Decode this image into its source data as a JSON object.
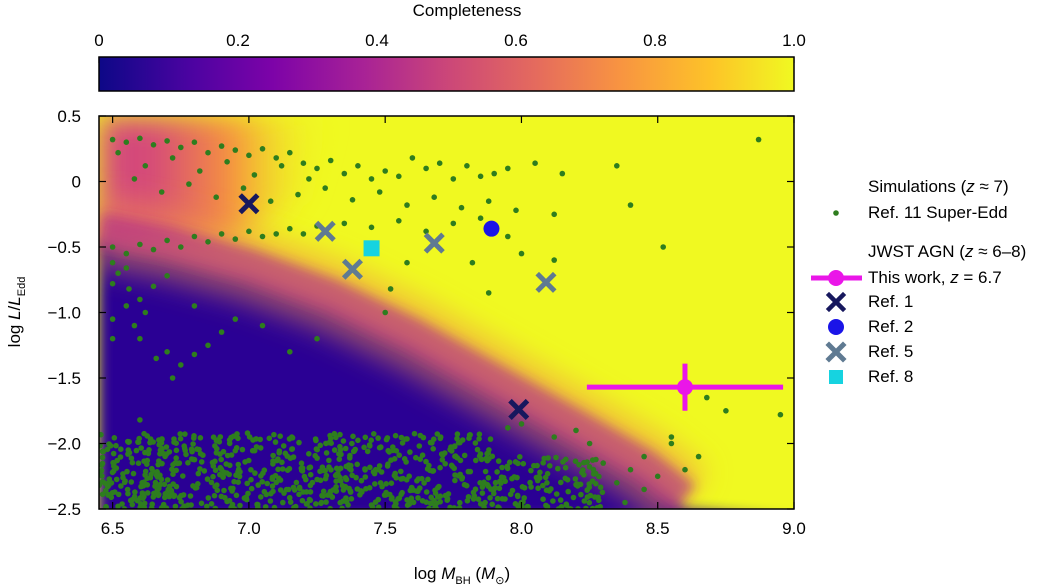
{
  "colorbar": {
    "title": "Completeness",
    "ticks": [
      "0",
      "0.2",
      "0.4",
      "0.6",
      "0.8",
      "1.0"
    ],
    "range": [
      0,
      1
    ],
    "colormap": "plasma"
  },
  "chart_data": {
    "type": "scatter",
    "xlabel_main": "log ",
    "xlabel_var": "M",
    "xlabel_sub": "BH",
    "xlabel_unit_open": " (",
    "xlabel_unit_var": "M",
    "xlabel_unit_sub": "⊙",
    "xlabel_unit_close": ")",
    "ylabel_main": "log ",
    "ylabel_var": "L",
    "ylabel_slash": "/",
    "ylabel_var2": "L",
    "ylabel_sub": "Edd",
    "xlim": [
      6.45,
      9.0
    ],
    "ylim": [
      -2.5,
      0.5
    ],
    "x_ticks": [
      {
        "value": 6.5,
        "label": "6.5"
      },
      {
        "value": 7.0,
        "label": "7.0"
      },
      {
        "value": 7.5,
        "label": "7.5"
      },
      {
        "value": 8.0,
        "label": "8.0"
      },
      {
        "value": 8.5,
        "label": "8.5"
      },
      {
        "value": 9.0,
        "label": "9.0"
      }
    ],
    "y_ticks": [
      {
        "value": 0.5,
        "label": "0.5"
      },
      {
        "value": 0.0,
        "label": "0"
      },
      {
        "value": -0.5,
        "label": "−0.5"
      },
      {
        "value": -1.0,
        "label": "−1.0"
      },
      {
        "value": -1.5,
        "label": "−1.5"
      },
      {
        "value": -2.0,
        "label": "−2.0"
      },
      {
        "value": -2.5,
        "label": "−2.5"
      }
    ],
    "legend": {
      "position": "right",
      "group1_title_pre": "Simulations (",
      "group1_title_var": "z",
      "group1_title_post": " ≈ 7)",
      "group2_title_pre": "JWST AGN (",
      "group2_title_var": "z",
      "group2_title_post": " ≈ 6–8)"
    },
    "series": [
      {
        "name": "Ref. 11 Super-Edd",
        "marker": "dot",
        "color": "#2e7d1e",
        "points": [
          [
            6.5,
            0.32
          ],
          [
            6.55,
            0.3
          ],
          [
            6.6,
            0.33
          ],
          [
            6.65,
            0.28
          ],
          [
            6.7,
            0.31
          ],
          [
            6.75,
            0.26
          ],
          [
            6.8,
            0.3
          ],
          [
            6.85,
            0.22
          ],
          [
            6.9,
            0.27
          ],
          [
            6.95,
            0.24
          ],
          [
            7.0,
            0.2
          ],
          [
            7.05,
            0.25
          ],
          [
            7.1,
            0.18
          ],
          [
            7.15,
            0.22
          ],
          [
            7.2,
            0.14
          ],
          [
            7.25,
            0.1
          ],
          [
            7.3,
            0.16
          ],
          [
            7.35,
            0.06
          ],
          [
            7.4,
            0.12
          ],
          [
            7.45,
            0.02
          ],
          [
            7.5,
            0.08
          ],
          [
            7.55,
            0.04
          ],
          [
            7.6,
            0.18
          ],
          [
            7.65,
            0.1
          ],
          [
            7.7,
            0.14
          ],
          [
            7.75,
            0.02
          ],
          [
            7.8,
            0.12
          ],
          [
            7.85,
            0.04
          ],
          [
            7.9,
            0.06
          ],
          [
            7.95,
            0.1
          ],
          [
            8.05,
            0.14
          ],
          [
            8.15,
            0.06
          ],
          [
            8.35,
            0.12
          ],
          [
            8.87,
            0.32
          ],
          [
            6.52,
            0.22
          ],
          [
            6.62,
            0.12
          ],
          [
            6.72,
            0.18
          ],
          [
            6.82,
            0.08
          ],
          [
            6.92,
            0.15
          ],
          [
            7.02,
            0.05
          ],
          [
            7.12,
            0.12
          ],
          [
            7.22,
            0.02
          ],
          [
            6.58,
            0.02
          ],
          [
            6.68,
            -0.08
          ],
          [
            6.78,
            -0.02
          ],
          [
            6.88,
            -0.12
          ],
          [
            6.98,
            -0.05
          ],
          [
            7.08,
            -0.15
          ],
          [
            7.18,
            -0.1
          ],
          [
            7.28,
            -0.05
          ],
          [
            7.38,
            -0.14
          ],
          [
            7.48,
            -0.08
          ],
          [
            7.58,
            -0.18
          ],
          [
            7.68,
            -0.12
          ],
          [
            7.78,
            -0.2
          ],
          [
            7.88,
            -0.15
          ],
          [
            7.98,
            -0.22
          ],
          [
            8.12,
            -0.25
          ],
          [
            8.4,
            -0.18
          ],
          [
            6.5,
            -0.5
          ],
          [
            6.55,
            -0.55
          ],
          [
            6.6,
            -0.48
          ],
          [
            6.65,
            -0.52
          ],
          [
            6.7,
            -0.45
          ],
          [
            6.75,
            -0.5
          ],
          [
            6.8,
            -0.42
          ],
          [
            6.85,
            -0.46
          ],
          [
            6.9,
            -0.4
          ],
          [
            6.95,
            -0.44
          ],
          [
            7.0,
            -0.38
          ],
          [
            7.05,
            -0.42
          ],
          [
            7.1,
            -0.4
          ],
          [
            7.15,
            -0.36
          ],
          [
            7.2,
            -0.4
          ],
          [
            7.25,
            -0.34
          ],
          [
            7.35,
            -0.32
          ],
          [
            7.45,
            -0.35
          ],
          [
            7.55,
            -0.3
          ],
          [
            7.65,
            -0.38
          ],
          [
            7.75,
            -0.32
          ],
          [
            7.85,
            -0.28
          ],
          [
            7.95,
            -0.42
          ],
          [
            8.0,
            -0.55
          ],
          [
            7.58,
            -0.62
          ],
          [
            7.82,
            -0.62
          ],
          [
            7.88,
            -0.85
          ],
          [
            8.52,
            -0.5
          ],
          [
            7.52,
            -0.82
          ],
          [
            8.12,
            -0.6
          ],
          [
            6.5,
            -0.62
          ],
          [
            6.52,
            -0.7
          ],
          [
            6.55,
            -0.66
          ],
          [
            6.5,
            -0.78
          ],
          [
            6.56,
            -0.82
          ],
          [
            6.6,
            -0.9
          ],
          [
            6.55,
            -0.95
          ],
          [
            6.5,
            -1.05
          ],
          [
            6.58,
            -1.1
          ],
          [
            6.62,
            -1.0
          ],
          [
            6.5,
            -1.2
          ],
          [
            6.6,
            -1.2
          ],
          [
            6.66,
            -1.35
          ],
          [
            6.7,
            -1.3
          ],
          [
            6.72,
            -1.5
          ],
          [
            6.75,
            -1.4
          ],
          [
            6.8,
            -1.32
          ],
          [
            6.85,
            -1.25
          ],
          [
            6.9,
            -1.15
          ],
          [
            6.95,
            -1.05
          ],
          [
            6.65,
            -0.8
          ],
          [
            6.7,
            -0.72
          ],
          [
            6.8,
            -0.95
          ],
          [
            7.05,
            -1.1
          ],
          [
            7.15,
            -1.3
          ],
          [
            7.25,
            -1.2
          ],
          [
            7.5,
            -1.0
          ],
          [
            6.6,
            -1.82
          ],
          [
            8.2,
            -1.9
          ],
          [
            8.25,
            -2.0
          ],
          [
            8.3,
            -2.15
          ],
          [
            8.35,
            -2.3
          ],
          [
            8.4,
            -2.2
          ],
          [
            8.45,
            -2.1
          ],
          [
            8.5,
            -2.25
          ],
          [
            8.55,
            -2.0
          ],
          [
            8.6,
            -2.2
          ],
          [
            8.65,
            -2.1
          ],
          [
            8.68,
            -1.65
          ],
          [
            8.75,
            -1.75
          ],
          [
            8.95,
            -1.78
          ],
          [
            8.55,
            -1.95
          ],
          [
            8.45,
            -2.35
          ],
          [
            8.38,
            -2.45
          ],
          [
            8.12,
            -1.95
          ],
          [
            8.0,
            -1.85
          ],
          [
            7.95,
            -1.88
          ]
        ]
      },
      {
        "name": "Ref. 1",
        "marker": "x",
        "color": "#17185e",
        "points": [
          [
            7.0,
            -0.17
          ],
          [
            7.99,
            -1.74
          ]
        ]
      },
      {
        "name": "Ref. 2",
        "marker": "circle",
        "color": "#1a14e8",
        "points": [
          [
            7.89,
            -0.36
          ]
        ]
      },
      {
        "name": "Ref. 5",
        "marker": "x",
        "color": "#5f7a92",
        "points": [
          [
            7.28,
            -0.38
          ],
          [
            7.68,
            -0.47
          ],
          [
            7.38,
            -0.67
          ],
          [
            8.09,
            -0.77
          ]
        ]
      },
      {
        "name": "Ref. 8",
        "marker": "square",
        "color": "#16d3e0",
        "points": [
          [
            7.45,
            -0.51
          ]
        ]
      },
      {
        "name": "This work, ",
        "name_var": "z",
        "name_post": " = 6.7",
        "marker": "errorbar",
        "color": "#ea16e8",
        "points": [
          [
            8.6,
            -1.57
          ]
        ],
        "xerr": [
          0.36,
          0.36
        ],
        "yerr": [
          0.18,
          0.18
        ]
      }
    ],
    "background_band": {
      "description_value": "completeness map",
      "upper_edge": [
        [
          6.45,
          -0.45
        ],
        [
          6.7,
          -0.55
        ],
        [
          7.0,
          -0.72
        ],
        [
          7.3,
          -0.95
        ],
        [
          7.6,
          -1.25
        ],
        [
          7.9,
          -1.6
        ],
        [
          8.2,
          -1.95
        ],
        [
          8.45,
          -2.25
        ],
        [
          8.6,
          -2.5
        ]
      ],
      "lower_boundary": -1.95
    }
  }
}
